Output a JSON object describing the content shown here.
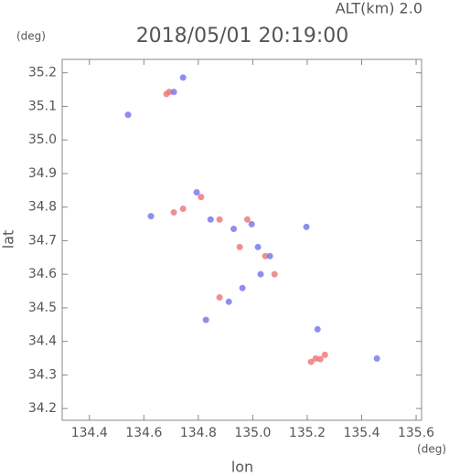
{
  "chart_data": {
    "type": "scatter",
    "title": "2018/05/01 20:19:00",
    "subtitle": "ALT(km) 2.0",
    "y_unit": "(deg)",
    "x_unit": "(deg)",
    "ylabel": "lat",
    "xlabel": "lon",
    "xlim": [
      134.3,
      135.62
    ],
    "ylim": [
      34.165,
      35.24
    ],
    "xticks": [
      134.4,
      134.6,
      134.8,
      {
        "value": 135,
        "label": "135.0"
      },
      135.2,
      135.4,
      135.6
    ],
    "yticks": [
      34.2,
      34.3,
      34.4,
      34.5,
      34.6,
      34.7,
      34.8,
      34.9,
      {
        "value": 35,
        "label": "35.0"
      },
      35.1,
      35.2
    ],
    "series": [
      {
        "color": "#f07a7a",
        "x": [
          134.683,
          134.693,
          134.71,
          134.744,
          134.81,
          134.878,
          134.952,
          135.046,
          134.878,
          135.248,
          135.231,
          135.214,
          135.265,
          135.08,
          134.98
        ],
        "values": [
          35.137,
          35.143,
          34.784,
          34.795,
          34.83,
          34.763,
          34.681,
          34.654,
          34.531,
          34.347,
          34.349,
          34.339,
          34.36,
          34.6,
          34.763
        ]
      },
      {
        "color": "#7a7af0",
        "x": [
          134.744,
          134.71,
          134.626,
          134.845,
          134.93,
          134.996,
          135.019,
          135.063,
          135.029,
          134.962,
          134.912,
          134.828,
          135.197,
          135.238,
          135.456,
          134.794,
          134.542
        ],
        "values": [
          35.186,
          35.143,
          34.773,
          34.763,
          34.735,
          34.749,
          34.681,
          34.654,
          34.6,
          34.559,
          34.518,
          34.464,
          34.741,
          34.436,
          34.349,
          34.844,
          35.075
        ]
      }
    ]
  }
}
